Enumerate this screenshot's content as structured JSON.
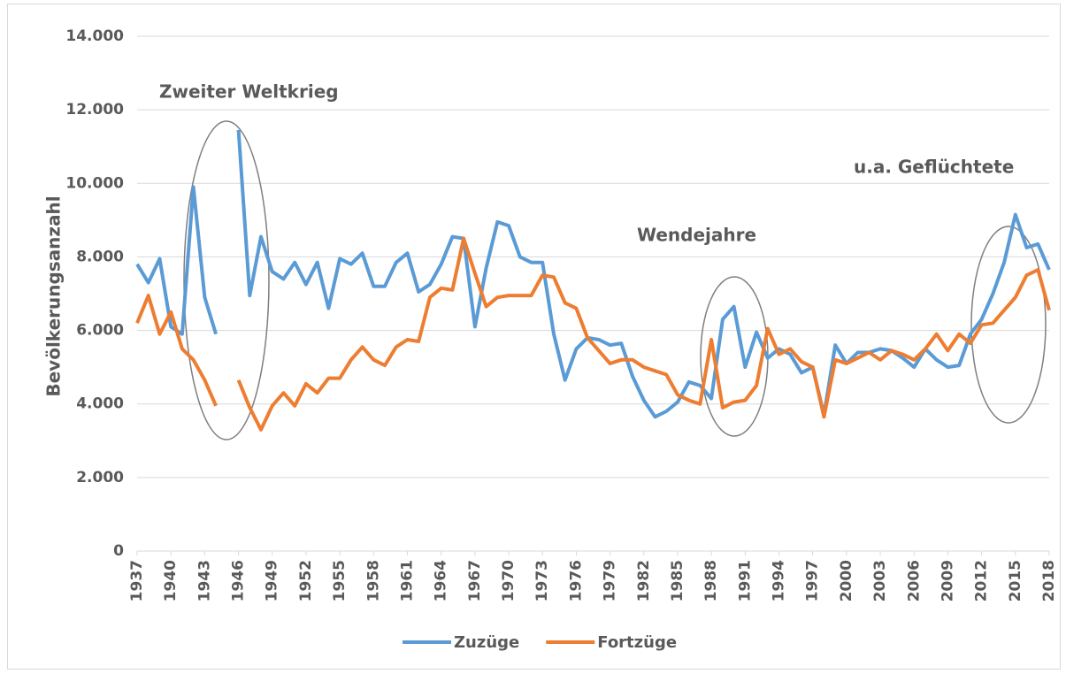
{
  "chart_data": {
    "type": "line",
    "y_label": "Bevölkerungsanzahl",
    "annotations": [
      "Zweiter Weltkrieg",
      "Wendejahre",
      "u.a. Geflüchtete"
    ],
    "x": [
      1937,
      1938,
      1939,
      1940,
      1941,
      1942,
      1943,
      1944,
      1945,
      1946,
      1947,
      1948,
      1949,
      1950,
      1951,
      1952,
      1953,
      1954,
      1955,
      1956,
      1957,
      1958,
      1959,
      1960,
      1961,
      1962,
      1963,
      1964,
      1965,
      1966,
      1967,
      1968,
      1969,
      1970,
      1971,
      1972,
      1973,
      1974,
      1975,
      1976,
      1977,
      1978,
      1979,
      1980,
      1981,
      1982,
      1983,
      1984,
      1985,
      1986,
      1987,
      1988,
      1989,
      1990,
      1991,
      1992,
      1993,
      1994,
      1995,
      1996,
      1997,
      1998,
      1999,
      2000,
      2001,
      2002,
      2003,
      2004,
      2005,
      2006,
      2007,
      2008,
      2009,
      2010,
      2011,
      2012,
      2013,
      2014,
      2015,
      2016,
      2017,
      2018
    ],
    "xlim": [
      1937,
      2018
    ],
    "xticks": [
      1937,
      1940,
      1943,
      1946,
      1949,
      1952,
      1955,
      1958,
      1961,
      1964,
      1967,
      1970,
      1973,
      1976,
      1979,
      1982,
      1985,
      1988,
      1991,
      1994,
      1997,
      2000,
      2003,
      2006,
      2009,
      2012,
      2015,
      2018
    ],
    "ylim": [
      0,
      14000
    ],
    "yticks": [
      0,
      {
        "value": 2000,
        "label": "2.000"
      },
      {
        "value": 4000,
        "label": "4.000"
      },
      {
        "value": 6000,
        "label": "6.000"
      },
      {
        "value": 8000,
        "label": "8.000"
      },
      {
        "value": 10000,
        "label": "10.000"
      },
      {
        "value": 12000,
        "label": "12.000"
      },
      {
        "value": 14000,
        "label": "14.000"
      }
    ],
    "grid": true,
    "legend": "bottom",
    "series": [
      {
        "name": "Zuzüge",
        "color": "#5b9bd5",
        "values": [
          7800,
          7300,
          7950,
          6100,
          5900,
          9900,
          6900,
          5900,
          null,
          11450,
          6950,
          8550,
          7600,
          7400,
          7850,
          7250,
          7850,
          6600,
          7950,
          7800,
          8100,
          7200,
          7200,
          7850,
          8100,
          7050,
          7250,
          7800,
          8550,
          8500,
          6100,
          7700,
          8950,
          8850,
          8000,
          7850,
          7850,
          5900,
          4650,
          5500,
          5800,
          5750,
          5600,
          5650,
          4750,
          4100,
          3650,
          3800,
          4050,
          4600,
          4500,
          4150,
          6300,
          6650,
          5000,
          5950,
          5250,
          5500,
          5350,
          4850,
          5000,
          3700,
          5600,
          5100,
          5400,
          5400,
          5500,
          5450,
          5250,
          5000,
          5500,
          5200,
          5000,
          5050,
          5900,
          6300,
          7000,
          7850,
          9150,
          8250,
          8350,
          7650
        ]
      },
      {
        "name": "Fortzüge",
        "color": "#ed7d31",
        "values": [
          6200,
          6950,
          5900,
          6500,
          5500,
          5200,
          4650,
          3950,
          null,
          4650,
          3900,
          3300,
          3950,
          4300,
          3950,
          4550,
          4300,
          4700,
          4700,
          5200,
          5550,
          5200,
          5050,
          5550,
          5750,
          5700,
          6900,
          7150,
          7100,
          8500,
          7550,
          6650,
          6900,
          6950,
          6950,
          6950,
          7500,
          7450,
          6750,
          6600,
          5800,
          5450,
          5100,
          5200,
          5200,
          5000,
          4900,
          4800,
          4250,
          4100,
          4000,
          5750,
          3900,
          4050,
          4100,
          4500,
          6050,
          5350,
          5500,
          5150,
          5000,
          3650,
          5200,
          5100,
          5250,
          5400,
          5200,
          5450,
          5350,
          5200,
          5500,
          5900,
          5450,
          5900,
          5650,
          6150,
          6200,
          6550,
          6900,
          7500,
          7650,
          6550
        ]
      }
    ]
  }
}
